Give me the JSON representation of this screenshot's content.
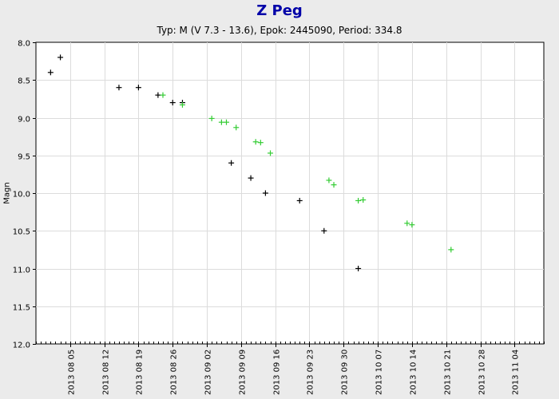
{
  "chart_data": {
    "type": "scatter",
    "title": "Z Peg",
    "subtitle": "Typ: M (V 7.3 - 13.6), Epok: 2445090, Period: 334.8",
    "ylabel": "Magn",
    "xlabel": "",
    "y_inverted": true,
    "ylim": [
      8.0,
      12.0
    ],
    "xlim": [
      "2013-07-29",
      "2013-11-10"
    ],
    "y_ticks": [
      "8.0",
      "8.5",
      "9.0",
      "9.5",
      "10.0",
      "10.5",
      "11.0",
      "11.5",
      "12.0"
    ],
    "x_ticks": [
      {
        "date": "2013-08-05",
        "label": "2013 08 05"
      },
      {
        "date": "2013-08-12",
        "label": "2013 08 12"
      },
      {
        "date": "2013-08-19",
        "label": "2013 08 19"
      },
      {
        "date": "2013-08-26",
        "label": "2013 08 26"
      },
      {
        "date": "2013-09-02",
        "label": "2013 09 02"
      },
      {
        "date": "2013-09-09",
        "label": "2013 09 09"
      },
      {
        "date": "2013-09-16",
        "label": "2013 09 16"
      },
      {
        "date": "2013-09-23",
        "label": "2013 09 23"
      },
      {
        "date": "2013-09-30",
        "label": "2013 09 30"
      },
      {
        "date": "2013-10-07",
        "label": "2013 10 07"
      },
      {
        "date": "2013-10-14",
        "label": "2013 10 14"
      },
      {
        "date": "2013-10-21",
        "label": "2013 10 21"
      },
      {
        "date": "2013-10-28",
        "label": "2013 10 28"
      },
      {
        "date": "2013-11-04",
        "label": "2013 11 04"
      }
    ],
    "grid": true,
    "series": [
      {
        "color": "#000000",
        "marker": "plus",
        "points": [
          {
            "x": "2013-08-01",
            "y": 8.4
          },
          {
            "x": "2013-08-03",
            "y": 8.2
          },
          {
            "x": "2013-08-15",
            "y": 8.6
          },
          {
            "x": "2013-08-19",
            "y": 8.6
          },
          {
            "x": "2013-08-23",
            "y": 8.7
          },
          {
            "x": "2013-08-26",
            "y": 8.8
          },
          {
            "x": "2013-08-28",
            "y": 8.8
          },
          {
            "x": "2013-09-07",
            "y": 9.6
          },
          {
            "x": "2013-09-11",
            "y": 9.8
          },
          {
            "x": "2013-09-14",
            "y": 10.0
          },
          {
            "x": "2013-09-21",
            "y": 10.1
          },
          {
            "x": "2013-09-26",
            "y": 10.5
          },
          {
            "x": "2013-10-03",
            "y": 11.0
          }
        ]
      },
      {
        "color": "#33cc33",
        "marker": "plus",
        "points": [
          {
            "x": "2013-08-24",
            "y": 8.7
          },
          {
            "x": "2013-08-28",
            "y": 8.83
          },
          {
            "x": "2013-09-03",
            "y": 9.01
          },
          {
            "x": "2013-09-05",
            "y": 9.06
          },
          {
            "x": "2013-09-06",
            "y": 9.06
          },
          {
            "x": "2013-09-08",
            "y": 9.13
          },
          {
            "x": "2013-09-12",
            "y": 9.32
          },
          {
            "x": "2013-09-13",
            "y": 9.33
          },
          {
            "x": "2013-09-15",
            "y": 9.47
          },
          {
            "x": "2013-09-27",
            "y": 9.83
          },
          {
            "x": "2013-09-28",
            "y": 9.89
          },
          {
            "x": "2013-10-03",
            "y": 10.1
          },
          {
            "x": "2013-10-04",
            "y": 10.09
          },
          {
            "x": "2013-10-13",
            "y": 10.4
          },
          {
            "x": "2013-10-14",
            "y": 10.42
          },
          {
            "x": "2013-10-22",
            "y": 10.75
          }
        ]
      }
    ]
  }
}
